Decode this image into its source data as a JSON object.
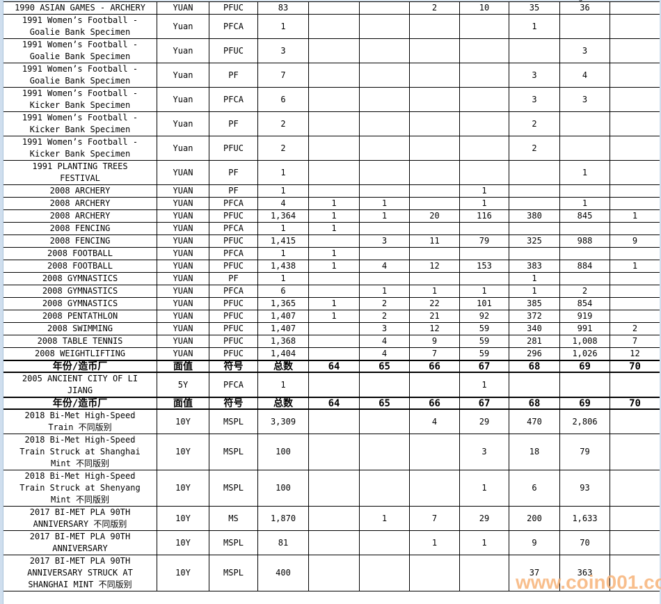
{
  "page": {
    "watermark": "www.coin001.com",
    "top_fragment": "g",
    "accent_colors": {
      "watermark_orange": "#f7b379",
      "frame_blue": "#cfdeee",
      "grid_black": "#000000"
    }
  },
  "table": {
    "header_labels": [
      "年份/造币厂",
      "面值",
      "符号",
      "总数",
      "64",
      "65",
      "66",
      "67",
      "68",
      "69",
      "70"
    ],
    "rows": [
      {
        "desc": "1990 ASIAN GAMES - ARCHERY",
        "denom": "YUAN",
        "grade": "PFUC",
        "total": "83",
        "counts": [
          "",
          "",
          "2",
          "10",
          "35",
          "36",
          ""
        ]
      },
      {
        "desc": "1991 Women’s Football -\nGoalie Bank Specimen",
        "denom": "Yuan",
        "grade": "PFCA",
        "total": "1",
        "counts": [
          "",
          "",
          "",
          "",
          "1",
          "",
          ""
        ]
      },
      {
        "desc": "1991 Women’s Football -\nGoalie Bank Specimen",
        "denom": "Yuan",
        "grade": "PFUC",
        "total": "3",
        "counts": [
          "",
          "",
          "",
          "",
          "",
          "3",
          ""
        ]
      },
      {
        "desc": "1991 Women’s Football -\nGoalie Bank Specimen",
        "denom": "Yuan",
        "grade": "PF",
        "total": "7",
        "counts": [
          "",
          "",
          "",
          "",
          "3",
          "4",
          ""
        ]
      },
      {
        "desc": "1991 Women’s Football -\nKicker Bank Specimen",
        "denom": "Yuan",
        "grade": "PFCA",
        "total": "6",
        "counts": [
          "",
          "",
          "",
          "",
          "3",
          "3",
          ""
        ]
      },
      {
        "desc": "1991 Women’s Football -\nKicker Bank Specimen",
        "denom": "Yuan",
        "grade": "PF",
        "total": "2",
        "counts": [
          "",
          "",
          "",
          "",
          "2",
          "",
          ""
        ]
      },
      {
        "desc": "1991 Women’s Football -\nKicker Bank Specimen",
        "denom": "Yuan",
        "grade": "PFUC",
        "total": "2",
        "counts": [
          "",
          "",
          "",
          "",
          "2",
          "",
          ""
        ]
      },
      {
        "desc": "1991 PLANTING TREES\nFESTIVAL",
        "denom": "YUAN",
        "grade": "PF",
        "total": "1",
        "counts": [
          "",
          "",
          "",
          "",
          "",
          "1",
          ""
        ]
      },
      {
        "desc": "2008 ARCHERY",
        "denom": "YUAN",
        "grade": "PF",
        "total": "1",
        "counts": [
          "",
          "",
          "",
          "1",
          "",
          "",
          ""
        ]
      },
      {
        "desc": "2008 ARCHERY",
        "denom": "YUAN",
        "grade": "PFCA",
        "total": "4",
        "counts": [
          "1",
          "1",
          "",
          "1",
          "",
          "1",
          ""
        ]
      },
      {
        "desc": "2008 ARCHERY",
        "denom": "YUAN",
        "grade": "PFUC",
        "total": "1,364",
        "counts": [
          "1",
          "1",
          "20",
          "116",
          "380",
          "845",
          "1"
        ]
      },
      {
        "desc": "2008 FENCING",
        "denom": "YUAN",
        "grade": "PFCA",
        "total": "1",
        "counts": [
          "1",
          "",
          "",
          "",
          "",
          "",
          ""
        ]
      },
      {
        "desc": "2008 FENCING",
        "denom": "YUAN",
        "grade": "PFUC",
        "total": "1,415",
        "counts": [
          "",
          "3",
          "11",
          "79",
          "325",
          "988",
          "9"
        ]
      },
      {
        "desc": "2008 FOOTBALL",
        "denom": "YUAN",
        "grade": "PFCA",
        "total": "1",
        "counts": [
          "1",
          "",
          "",
          "",
          "",
          "",
          ""
        ]
      },
      {
        "desc": "2008 FOOTBALL",
        "denom": "YUAN",
        "grade": "PFUC",
        "total": "1,438",
        "counts": [
          "1",
          "4",
          "12",
          "153",
          "383",
          "884",
          "1"
        ]
      },
      {
        "desc": "2008 GYMNASTICS",
        "denom": "YUAN",
        "grade": "PF",
        "total": "1",
        "counts": [
          "",
          "",
          "",
          "",
          "1",
          "",
          ""
        ]
      },
      {
        "desc": "2008 GYMNASTICS",
        "denom": "YUAN",
        "grade": "PFCA",
        "total": "6",
        "counts": [
          "",
          "1",
          "1",
          "1",
          "1",
          "2",
          ""
        ]
      },
      {
        "desc": "2008 GYMNASTICS",
        "denom": "YUAN",
        "grade": "PFUC",
        "total": "1,365",
        "counts": [
          "1",
          "2",
          "22",
          "101",
          "385",
          "854",
          ""
        ]
      },
      {
        "desc": "2008 PENTATHLON",
        "denom": "YUAN",
        "grade": "PFUC",
        "total": "1,407",
        "counts": [
          "1",
          "2",
          "21",
          "92",
          "372",
          "919",
          ""
        ]
      },
      {
        "desc": "2008 SWIMMING",
        "denom": "YUAN",
        "grade": "PFUC",
        "total": "1,407",
        "counts": [
          "",
          "3",
          "12",
          "59",
          "340",
          "991",
          "2"
        ]
      },
      {
        "desc": "2008 TABLE TENNIS",
        "denom": "YUAN",
        "grade": "PFUC",
        "total": "1,368",
        "counts": [
          "",
          "4",
          "9",
          "59",
          "281",
          "1,008",
          "7"
        ]
      },
      {
        "desc": "2008 WEIGHTLIFTING",
        "denom": "YUAN",
        "grade": "PFUC",
        "total": "1,404",
        "counts": [
          "",
          "4",
          "7",
          "59",
          "296",
          "1,026",
          "12"
        ]
      },
      {
        "h": true
      },
      {
        "desc": "2005 ANCIENT CITY OF LI\nJIANG",
        "denom": "5Y",
        "grade": "PFCA",
        "total": "1",
        "counts": [
          "",
          "",
          "",
          "1",
          "",
          "",
          ""
        ]
      },
      {
        "h": true
      },
      {
        "desc": "2018 Bi-Met High-Speed\nTrain 不同版别",
        "denom": "10Y",
        "grade": "MSPL",
        "total": "3,309",
        "counts": [
          "",
          "",
          "4",
          "29",
          "470",
          "2,806",
          ""
        ]
      },
      {
        "desc": "2018 Bi-Met High-Speed\nTrain Struck at Shanghai\nMint 不同版别",
        "denom": "10Y",
        "grade": "MSPL",
        "total": "100",
        "counts": [
          "",
          "",
          "",
          "3",
          "18",
          "79",
          ""
        ]
      },
      {
        "desc": "2018 Bi-Met High-Speed\nTrain Struck at Shenyang\nMint 不同版别",
        "denom": "10Y",
        "grade": "MSPL",
        "total": "100",
        "counts": [
          "",
          "",
          "",
          "1",
          "6",
          "93",
          ""
        ]
      },
      {
        "desc": "2017 BI-MET PLA 90TH\nANNIVERSARY 不同版别",
        "denom": "10Y",
        "grade": "MS",
        "total": "1,870",
        "counts": [
          "",
          "1",
          "7",
          "29",
          "200",
          "1,633",
          ""
        ]
      },
      {
        "desc": "2017 BI-MET PLA 90TH\nANNIVERSARY",
        "denom": "10Y",
        "grade": "MSPL",
        "total": "81",
        "counts": [
          "",
          "",
          "1",
          "1",
          "9",
          "70",
          ""
        ]
      },
      {
        "desc": "2017 BI-MET PLA 90TH\nANNIVERSARY STRUCK AT\nSHANGHAI MINT 不同版别",
        "denom": "10Y",
        "grade": "MSPL",
        "total": "400",
        "counts": [
          "",
          "",
          "",
          "",
          "37",
          "363",
          ""
        ]
      }
    ]
  }
}
